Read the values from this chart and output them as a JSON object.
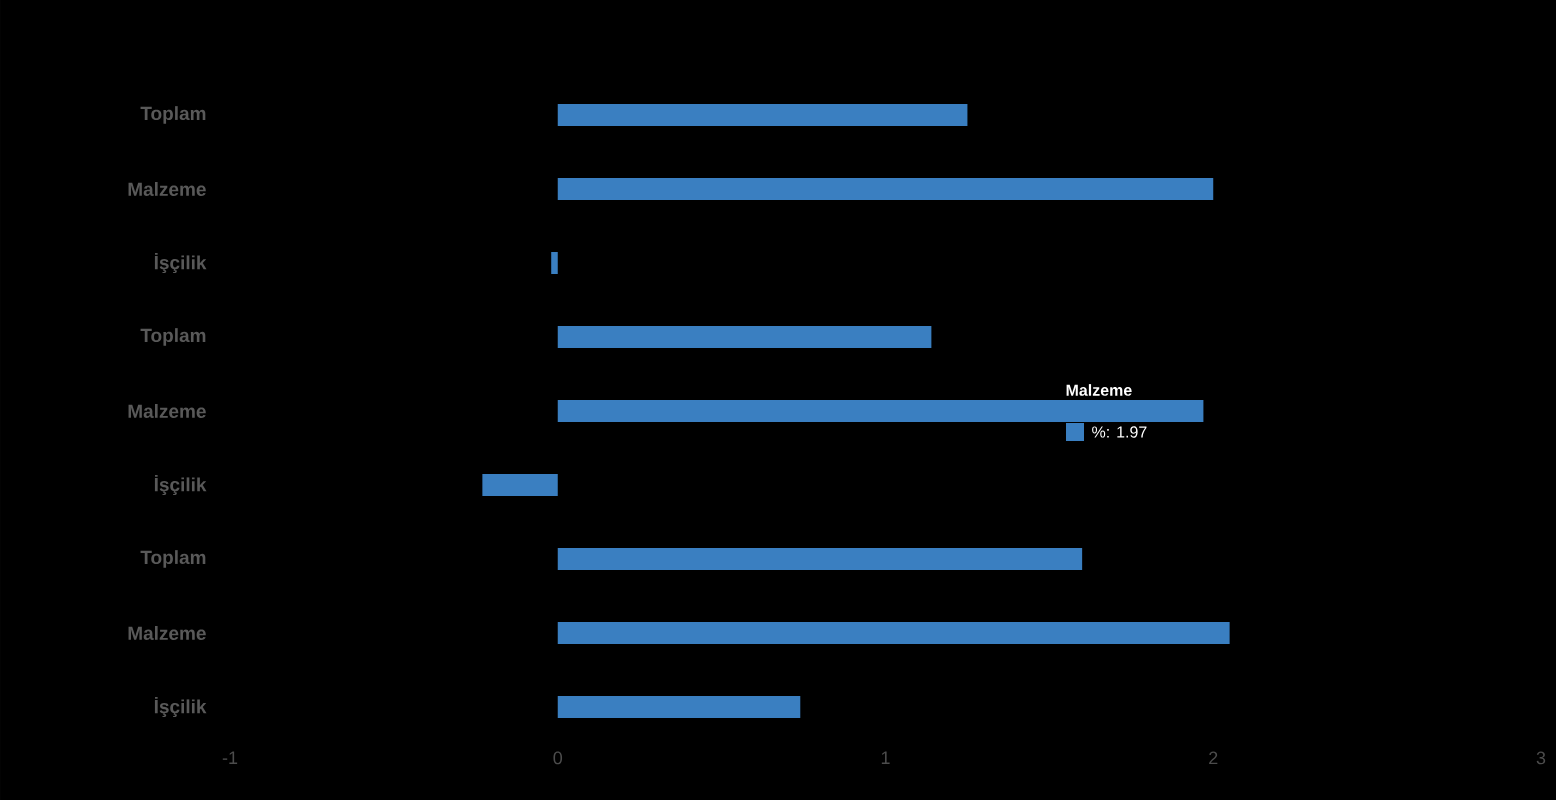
{
  "chart_data": {
    "type": "bar",
    "orientation": "horizontal",
    "categories": [
      "Toplam",
      "Malzeme",
      "İşçilik",
      "Toplam",
      "Malzeme",
      "İşçilik",
      "Toplam",
      "Malzeme",
      "İşçilik"
    ],
    "values": [
      1.25,
      2.0,
      -0.02,
      1.14,
      1.97,
      -0.23,
      1.6,
      2.05,
      0.74
    ],
    "color": "#3a7fc1",
    "xlim": [
      -1,
      3
    ],
    "xticks": [
      -1,
      0,
      1,
      2,
      3
    ],
    "annotations": [
      "Malzeme",
      "%: 1.97"
    ]
  }
}
